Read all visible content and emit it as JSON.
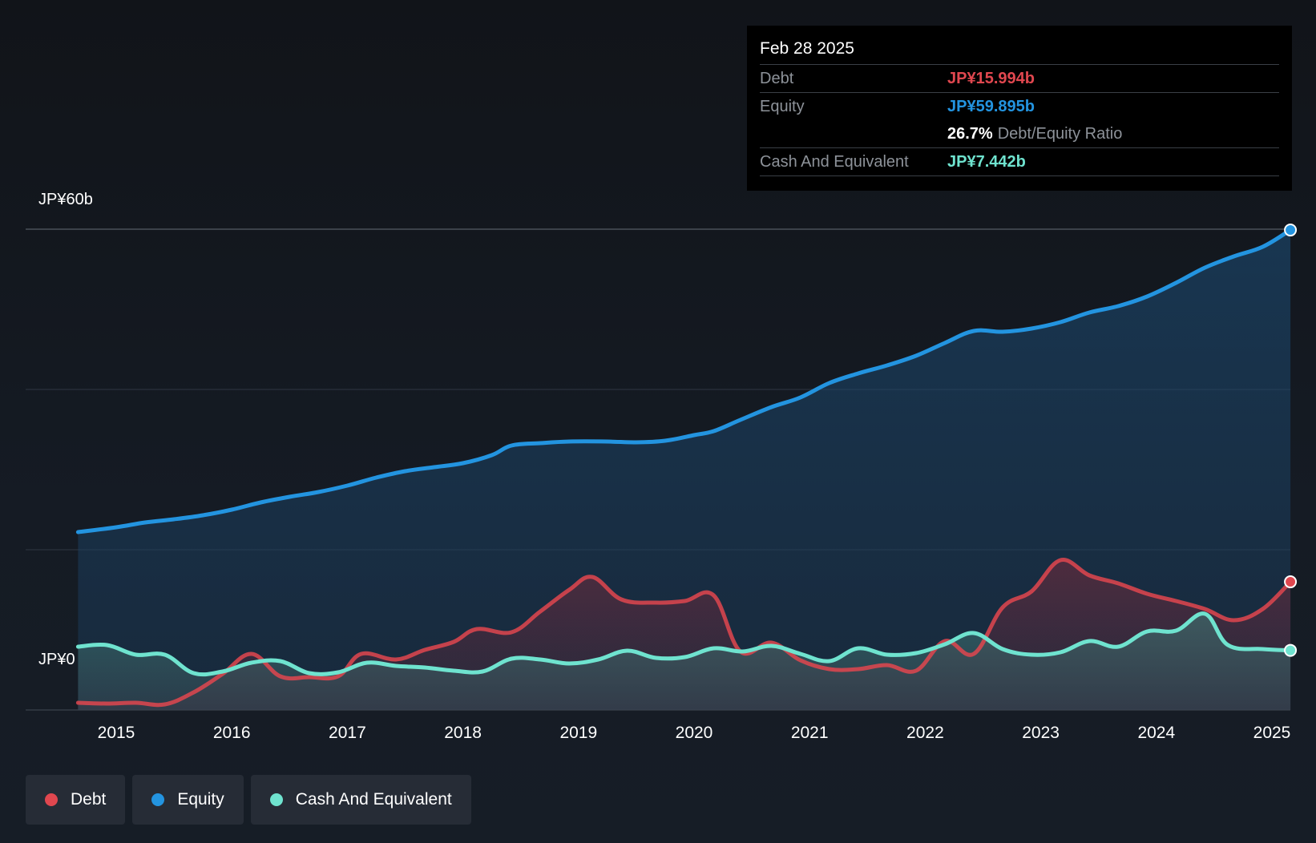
{
  "chart_data": {
    "type": "line",
    "title": "",
    "xlabel": "",
    "ylabel": "",
    "ylim": [
      0,
      60
    ],
    "y_unit": "JP¥b",
    "y_axis_labels": {
      "top": "JP¥60b",
      "bottom": "JP¥0"
    },
    "grid": true,
    "legend_position": "bottom-left",
    "x_ticks": [
      "2015",
      "2016",
      "2017",
      "2018",
      "2019",
      "2020",
      "2021",
      "2022",
      "2023",
      "2024",
      "2025"
    ],
    "x_tick_values": [
      2015,
      2016,
      2017,
      2018,
      2019,
      2020,
      2021,
      2022,
      2023,
      2024,
      2025
    ],
    "series": [
      {
        "name": "Equity",
        "color": "#2394e0",
        "points": [
          [
            2014.67,
            22.2
          ],
          [
            2015.0,
            22.8
          ],
          [
            2015.25,
            23.4
          ],
          [
            2015.5,
            23.8
          ],
          [
            2015.75,
            24.3
          ],
          [
            2016.0,
            25.0
          ],
          [
            2016.25,
            25.9
          ],
          [
            2016.5,
            26.6
          ],
          [
            2016.75,
            27.2
          ],
          [
            2017.0,
            28.0
          ],
          [
            2017.25,
            29.0
          ],
          [
            2017.5,
            29.8
          ],
          [
            2017.75,
            30.3
          ],
          [
            2018.0,
            30.8
          ],
          [
            2018.25,
            31.8
          ],
          [
            2018.42,
            33.0
          ],
          [
            2018.67,
            33.3
          ],
          [
            2018.92,
            33.5
          ],
          [
            2019.25,
            33.5
          ],
          [
            2019.5,
            33.4
          ],
          [
            2019.75,
            33.6
          ],
          [
            2020.0,
            34.3
          ],
          [
            2020.17,
            34.8
          ],
          [
            2020.4,
            36.2
          ],
          [
            2020.67,
            37.8
          ],
          [
            2020.92,
            39.0
          ],
          [
            2021.17,
            40.8
          ],
          [
            2021.42,
            42.0
          ],
          [
            2021.67,
            43.0
          ],
          [
            2021.92,
            44.2
          ],
          [
            2022.17,
            45.8
          ],
          [
            2022.42,
            47.3
          ],
          [
            2022.67,
            47.2
          ],
          [
            2022.92,
            47.6
          ],
          [
            2023.17,
            48.4
          ],
          [
            2023.42,
            49.6
          ],
          [
            2023.67,
            50.4
          ],
          [
            2023.92,
            51.6
          ],
          [
            2024.17,
            53.3
          ],
          [
            2024.42,
            55.2
          ],
          [
            2024.67,
            56.6
          ],
          [
            2024.92,
            57.8
          ],
          [
            2025.16,
            59.895
          ]
        ]
      },
      {
        "name": "Debt",
        "color": "#e0474f",
        "points": [
          [
            2014.67,
            0.9
          ],
          [
            2014.92,
            0.8
          ],
          [
            2015.17,
            0.9
          ],
          [
            2015.42,
            0.7
          ],
          [
            2015.67,
            2.2
          ],
          [
            2015.92,
            4.5
          ],
          [
            2016.17,
            7.0
          ],
          [
            2016.42,
            4.2
          ],
          [
            2016.67,
            4.1
          ],
          [
            2016.92,
            4.2
          ],
          [
            2017.12,
            7.0
          ],
          [
            2017.42,
            6.3
          ],
          [
            2017.67,
            7.5
          ],
          [
            2017.92,
            8.5
          ],
          [
            2018.12,
            10.1
          ],
          [
            2018.42,
            9.7
          ],
          [
            2018.67,
            12.3
          ],
          [
            2018.92,
            15.0
          ],
          [
            2019.12,
            16.6
          ],
          [
            2019.37,
            13.8
          ],
          [
            2019.67,
            13.4
          ],
          [
            2019.92,
            13.6
          ],
          [
            2020.17,
            14.3
          ],
          [
            2020.4,
            7.3
          ],
          [
            2020.67,
            8.4
          ],
          [
            2020.92,
            6.2
          ],
          [
            2021.17,
            5.1
          ],
          [
            2021.42,
            5.1
          ],
          [
            2021.67,
            5.6
          ],
          [
            2021.92,
            4.9
          ],
          [
            2022.17,
            8.6
          ],
          [
            2022.42,
            7.0
          ],
          [
            2022.67,
            12.8
          ],
          [
            2022.92,
            14.8
          ],
          [
            2023.17,
            18.7
          ],
          [
            2023.42,
            16.8
          ],
          [
            2023.67,
            15.8
          ],
          [
            2023.92,
            14.5
          ],
          [
            2024.17,
            13.6
          ],
          [
            2024.42,
            12.6
          ],
          [
            2024.67,
            11.2
          ],
          [
            2024.92,
            12.6
          ],
          [
            2025.16,
            15.994
          ]
        ]
      },
      {
        "name": "Cash And Equivalent",
        "color": "#6fe3cf",
        "points": [
          [
            2014.67,
            7.9
          ],
          [
            2014.92,
            8.1
          ],
          [
            2015.17,
            6.9
          ],
          [
            2015.42,
            6.9
          ],
          [
            2015.67,
            4.6
          ],
          [
            2015.92,
            4.8
          ],
          [
            2016.17,
            5.9
          ],
          [
            2016.42,
            6.1
          ],
          [
            2016.67,
            4.6
          ],
          [
            2016.92,
            4.7
          ],
          [
            2017.17,
            5.9
          ],
          [
            2017.42,
            5.5
          ],
          [
            2017.67,
            5.3
          ],
          [
            2017.92,
            4.9
          ],
          [
            2018.17,
            4.8
          ],
          [
            2018.42,
            6.4
          ],
          [
            2018.67,
            6.3
          ],
          [
            2018.92,
            5.8
          ],
          [
            2019.17,
            6.3
          ],
          [
            2019.42,
            7.4
          ],
          [
            2019.67,
            6.5
          ],
          [
            2019.92,
            6.6
          ],
          [
            2020.17,
            7.7
          ],
          [
            2020.42,
            7.3
          ],
          [
            2020.67,
            8.0
          ],
          [
            2020.92,
            7.0
          ],
          [
            2021.17,
            6.1
          ],
          [
            2021.42,
            7.7
          ],
          [
            2021.67,
            6.9
          ],
          [
            2021.92,
            7.1
          ],
          [
            2022.17,
            8.2
          ],
          [
            2022.42,
            9.6
          ],
          [
            2022.67,
            7.6
          ],
          [
            2022.92,
            6.9
          ],
          [
            2023.17,
            7.2
          ],
          [
            2023.42,
            8.6
          ],
          [
            2023.67,
            7.9
          ],
          [
            2023.92,
            9.8
          ],
          [
            2024.17,
            9.9
          ],
          [
            2024.42,
            12.0
          ],
          [
            2024.62,
            8.1
          ],
          [
            2024.92,
            7.6
          ],
          [
            2025.16,
            7.442
          ]
        ]
      }
    ],
    "tooltip": {
      "date": "Feb 28 2025",
      "debt_label": "Debt",
      "debt_value": "JP¥15.994b",
      "equity_label": "Equity",
      "equity_value": "JP¥59.895b",
      "ratio_value": "26.7%",
      "ratio_label": "Debt/Equity Ratio",
      "cash_label": "Cash And Equivalent",
      "cash_value": "JP¥7.442b"
    }
  },
  "legend": {
    "items": [
      {
        "label": "Debt",
        "color": "#e0474f"
      },
      {
        "label": "Equity",
        "color": "#2394e0"
      },
      {
        "label": "Cash And Equivalent",
        "color": "#6fe3cf"
      }
    ]
  },
  "colors": {
    "debt": "#e0474f",
    "equity": "#2394e0",
    "cash": "#6fe3cf"
  }
}
